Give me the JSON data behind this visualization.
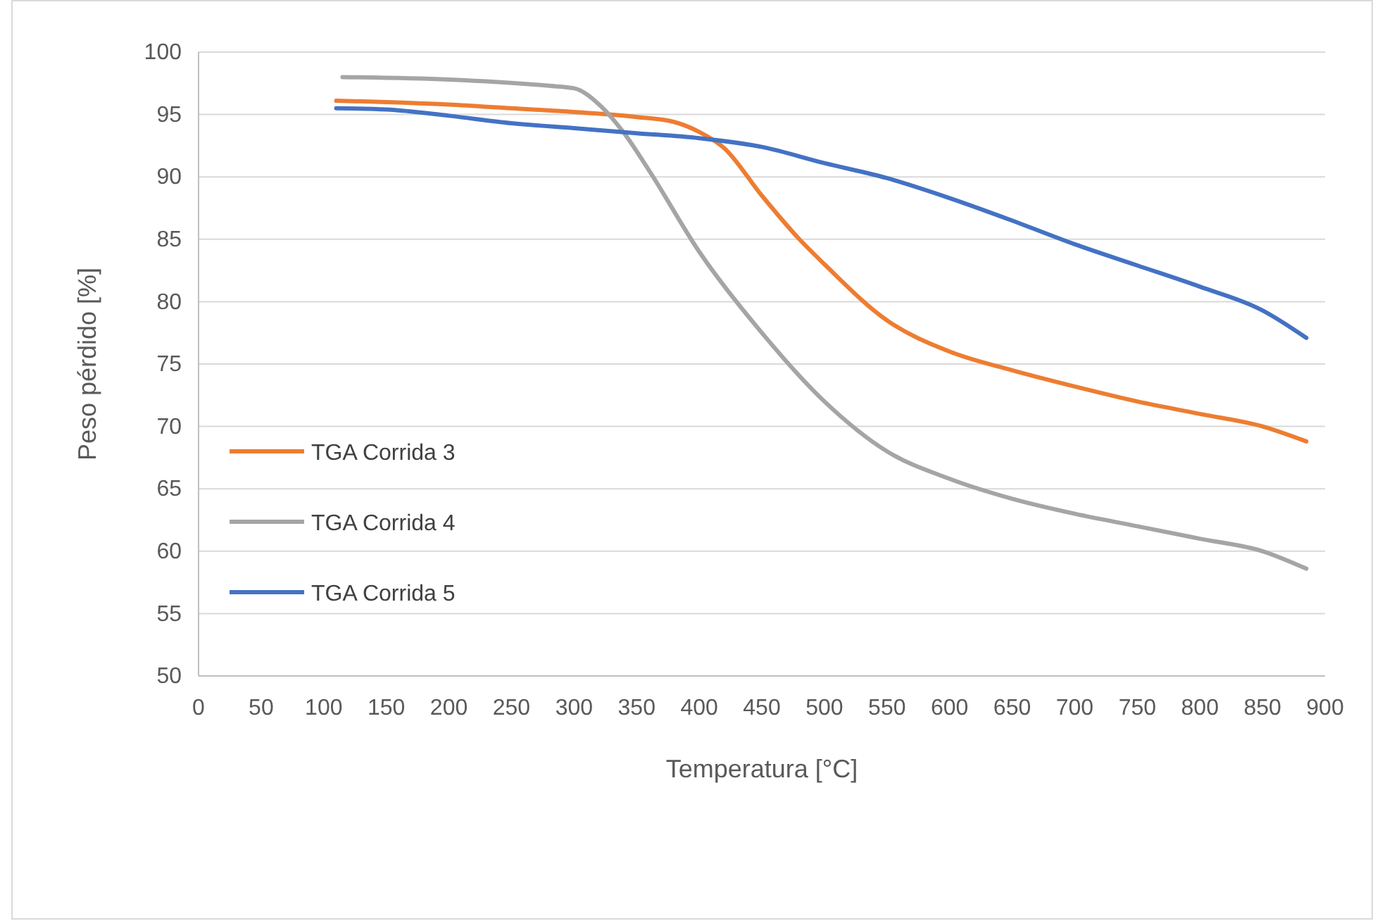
{
  "chart_data": {
    "type": "line",
    "xlabel": "Temperatura [°C]",
    "ylabel": "Peso pérdido [%]",
    "xlim": [
      0,
      900
    ],
    "xticks": [
      0,
      50,
      100,
      150,
      200,
      250,
      300,
      350,
      400,
      450,
      500,
      550,
      600,
      650,
      700,
      750,
      800,
      850,
      900
    ],
    "ylim": [
      50,
      100
    ],
    "yticks": [
      50,
      55,
      60,
      65,
      70,
      75,
      80,
      85,
      90,
      95,
      100
    ],
    "grid": "y",
    "legend": "left",
    "marker": "none",
    "line_style": "solid",
    "series": [
      {
        "name": "TGA Corrida 3",
        "color": "#ed7d31",
        "x": [
          110,
          150,
          200,
          250,
          300,
          350,
          380,
          400,
          420,
          450,
          480,
          500,
          550,
          600,
          650,
          700,
          750,
          800,
          850,
          885
        ],
        "values": [
          96.1,
          96.0,
          95.8,
          95.5,
          95.2,
          94.8,
          94.4,
          93.6,
          92.3,
          88.5,
          85,
          83,
          78.5,
          76,
          74.5,
          73.2,
          72,
          71,
          70,
          68.8
        ]
      },
      {
        "name": "TGA Corrida 4",
        "color": "#a5a5a5",
        "x": [
          115,
          200,
          280,
          300,
          320,
          340,
          360,
          400,
          450,
          500,
          550,
          600,
          650,
          700,
          750,
          800,
          850,
          885
        ],
        "values": [
          98.0,
          97.8,
          97.3,
          97.1,
          95.8,
          93.5,
          90.5,
          84,
          77.5,
          72,
          68,
          65.8,
          64.2,
          63,
          62,
          61,
          60,
          58.6
        ]
      },
      {
        "name": "TGA Corrida 5",
        "color": "#4472c4",
        "x": [
          110,
          150,
          200,
          250,
          300,
          350,
          400,
          450,
          500,
          550,
          600,
          650,
          700,
          750,
          800,
          850,
          885
        ],
        "values": [
          95.5,
          95.4,
          94.9,
          94.3,
          93.9,
          93.5,
          93.1,
          92.4,
          91.1,
          89.9,
          88.3,
          86.5,
          84.6,
          82.9,
          81.2,
          79.3,
          77.1
        ]
      }
    ]
  }
}
